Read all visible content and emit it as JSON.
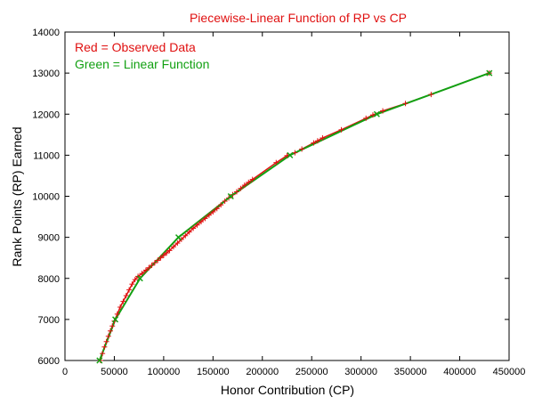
{
  "chart_data": {
    "type": "line",
    "title": "Piecewise-Linear Function of RP vs CP",
    "xlabel": "Honor Contribution (CP)",
    "ylabel": "Rank Points (RP) Earned",
    "xlim": [
      0,
      450000
    ],
    "ylim": [
      6000,
      14000
    ],
    "x_ticks": [
      0,
      50000,
      100000,
      150000,
      200000,
      250000,
      300000,
      350000,
      400000,
      450000
    ],
    "y_ticks": [
      6000,
      7000,
      8000,
      9000,
      10000,
      11000,
      12000,
      13000,
      14000
    ],
    "x_tick_labels": [
      "0",
      "50000",
      "100000",
      "150000",
      "200000",
      "250000",
      "300000",
      "350000",
      "400000",
      "450000"
    ],
    "y_tick_labels": [
      "6000",
      "7000",
      "8000",
      "9000",
      "10000",
      "11000",
      "12000",
      "13000",
      "14000"
    ],
    "grid": false,
    "legend_placement": "top-left",
    "series": [
      {
        "name": "Red = Observed Data",
        "color": "#e01010",
        "marker": "plus",
        "x": [
          36000,
          38000,
          40000,
          42000,
          44000,
          46000,
          48000,
          50000,
          53000,
          56000,
          59000,
          62000,
          65000,
          68000,
          71000,
          74000,
          78000,
          82000,
          85000,
          88000,
          91000,
          94000,
          97000,
          100000,
          103000,
          106000,
          110000,
          114000,
          118000,
          122000,
          126000,
          130000,
          134000,
          138000,
          142000,
          146000,
          150000,
          154000,
          158000,
          162000,
          166000,
          170000,
          174000,
          178000,
          182000,
          186000,
          190000,
          214000,
          225000,
          233000,
          240000,
          252000,
          256000,
          261000,
          280000,
          305000,
          312000,
          322000,
          345000,
          371000,
          430000
        ],
        "y": [
          6000,
          6170,
          6330,
          6460,
          6590,
          6720,
          6840,
          6960,
          7130,
          7300,
          7440,
          7580,
          7720,
          7860,
          7970,
          8050,
          8120,
          8200,
          8260,
          8320,
          8380,
          8440,
          8500,
          8560,
          8620,
          8680,
          8770,
          8860,
          8950,
          9040,
          9130,
          9220,
          9300,
          9380,
          9460,
          9540,
          9620,
          9700,
          9790,
          9880,
          9960,
          10040,
          10110,
          10190,
          10270,
          10340,
          10410,
          10820,
          10990,
          11060,
          11150,
          11300,
          11350,
          11420,
          11620,
          11900,
          11980,
          12080,
          12260,
          12480,
          13000
        ]
      },
      {
        "name": "Green = Linear Function",
        "color": "#12a012",
        "marker": "x",
        "x": [
          35000,
          51000,
          76000,
          115000,
          168000,
          228000,
          316000,
          430000
        ],
        "y": [
          6000,
          7000,
          8000,
          9000,
          10000,
          11000,
          12000,
          13000
        ]
      }
    ]
  }
}
